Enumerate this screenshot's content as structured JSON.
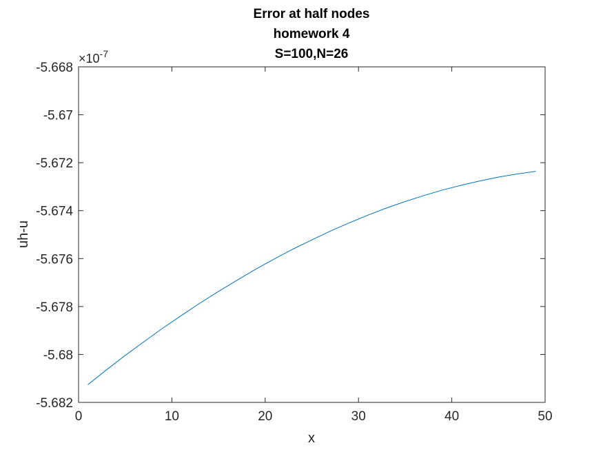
{
  "chart_data": {
    "type": "line",
    "title": [
      "Error at half nodes",
      "homework 4",
      "S=100,N=26"
    ],
    "xlabel": "x",
    "ylabel": "uh-u",
    "xlim": [
      0,
      50
    ],
    "ylim": [
      -5.682,
      -5.668
    ],
    "y_exponent_label": "×10",
    "y_exponent_power": "-7",
    "x_ticks": [
      0,
      10,
      20,
      30,
      40,
      50
    ],
    "x_tick_labels": [
      "0",
      "10",
      "20",
      "30",
      "40",
      "50"
    ],
    "y_ticks": [
      -5.682,
      -5.68,
      -5.678,
      -5.676,
      -5.674,
      -5.672,
      -5.67,
      -5.668
    ],
    "y_tick_labels": [
      "-5.682",
      "-5.68",
      "-5.678",
      "-5.676",
      "-5.674",
      "-5.672",
      "-5.67",
      "-5.668"
    ],
    "grid": false,
    "line_color": "#0072BD",
    "series": [
      {
        "x": [
          1,
          3,
          5,
          7,
          9,
          11,
          13,
          15,
          17,
          19,
          21,
          23,
          25,
          27,
          29,
          31,
          33,
          35,
          37,
          39,
          41,
          43,
          45,
          47,
          49
        ],
        "y": [
          -5.68126,
          -5.68064,
          -5.68004,
          -5.67947,
          -5.67891,
          -5.67838,
          -5.67786,
          -5.67737,
          -5.6769,
          -5.67644,
          -5.67601,
          -5.6756,
          -5.67522,
          -5.67485,
          -5.67451,
          -5.67419,
          -5.67389,
          -5.67362,
          -5.67337,
          -5.67314,
          -5.67294,
          -5.67276,
          -5.6726,
          -5.67247,
          -5.67236
        ]
      }
    ]
  }
}
